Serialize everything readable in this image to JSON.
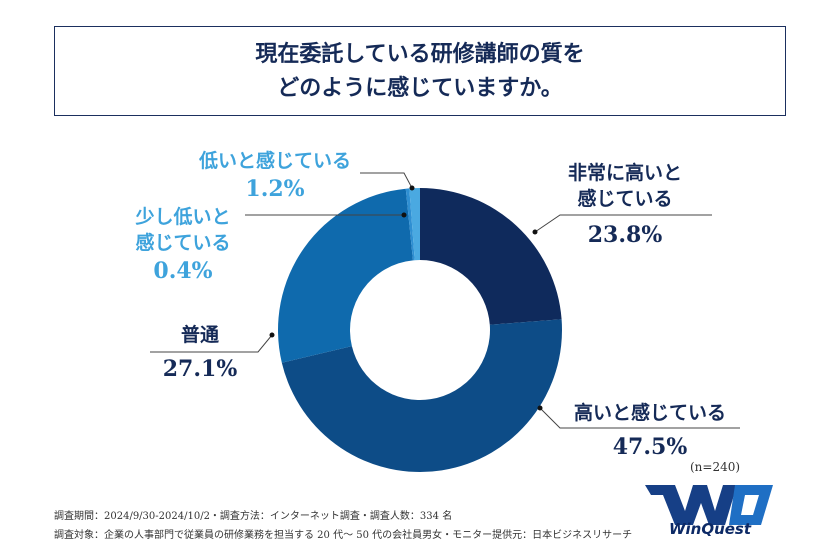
{
  "title": {
    "line1": "現在委託している研修講師の質を",
    "line2": "どのように感じていますか。"
  },
  "chart_data": {
    "type": "pie",
    "donut": true,
    "title": "現在委託している研修講師の質をどのように感じていますか。",
    "categories": [
      "非常に高いと感じている",
      "高いと感じている",
      "普通",
      "少し低いと感じている",
      "低いと感じている"
    ],
    "values": [
      23.8,
      47.5,
      27.1,
      0.4,
      1.2
    ],
    "labels": [
      "23.8%",
      "47.5%",
      "27.1%",
      "0.4%",
      "1.2%"
    ],
    "colors": [
      "#0f2a5c",
      "#0d4c87",
      "#0f6aad",
      "#2f8fd2",
      "#4aa9e1"
    ],
    "n": "(n=240)"
  },
  "labels_text": {
    "very_high_1": "非常に高いと",
    "very_high_2": "感じている",
    "high": "高いと感じている",
    "normal": "普通",
    "slightly_low_1": "少し低いと",
    "slightly_low_2": "感じている",
    "low": "低いと感じている"
  },
  "footer": {
    "line1": "調査期間：2024/9/30-2024/10/2・調査方法：インターネット調査・調査人数：334 名",
    "line2": "調査対象：企業の人事部門で従業員の研修業務を担当する 20 代〜 50 代の会社員男女・モニター提供元：日本ビジネスリサーチ"
  },
  "logo": {
    "text": "WinQuest"
  }
}
